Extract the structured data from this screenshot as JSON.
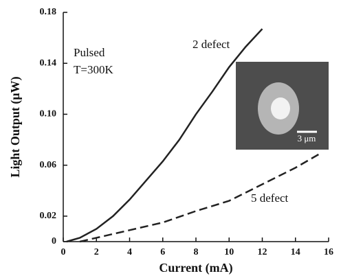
{
  "chart_data": {
    "type": "line",
    "x_label": "Current (mA)",
    "y_label": "Light Output (μW)",
    "annotations": [
      "Pulsed",
      "T=300K"
    ],
    "inset_scale_label": "3 μm",
    "xlim": [
      0,
      16
    ],
    "xticks": [
      0,
      2,
      4,
      6,
      8,
      10,
      12,
      14,
      16
    ],
    "ylim": [
      0,
      0.18
    ],
    "yticks": [
      0,
      0.02,
      0.06,
      {
        "value": 0.1,
        "label": "0.10"
      },
      0.14,
      0.18
    ],
    "series": [
      {
        "name": "2 defect",
        "color": "#222222",
        "dash": "solid",
        "x": [
          0.2,
          1,
          2,
          3,
          4,
          5,
          6,
          7,
          8,
          9,
          10,
          11,
          12
        ],
        "values": [
          0,
          0.003,
          0.01,
          0.02,
          0.033,
          0.048,
          0.063,
          0.08,
          0.1,
          0.118,
          0.137,
          0.153,
          0.167
        ]
      },
      {
        "name": "5 defect",
        "color": "#222222",
        "dash": "dashed",
        "x": [
          1,
          2,
          4,
          6,
          8,
          10,
          12,
          14,
          15.6
        ],
        "values": [
          0,
          0.003,
          0.009,
          0.015,
          0.024,
          0.032,
          0.045,
          0.058,
          0.07
        ]
      }
    ]
  }
}
